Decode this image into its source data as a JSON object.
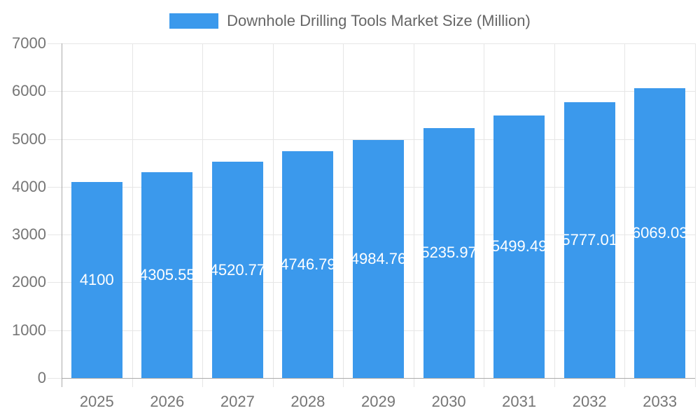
{
  "chart_data": {
    "type": "bar",
    "title": "Downhole Drilling Tools Market Size (Million)",
    "series_name": "Downhole Drilling Tools Market Size (Million)",
    "categories": [
      "2025",
      "2026",
      "2027",
      "2028",
      "2029",
      "2030",
      "2031",
      "2032",
      "2033"
    ],
    "values": [
      4100,
      4305.55,
      4520.77,
      4746.79,
      4984.76,
      5235.97,
      5499.49,
      5777.01,
      6069.03
    ],
    "bar_labels": [
      "4100",
      "4305.55",
      "4520.77",
      "4746.79",
      "4984.76",
      "5235.97",
      "5499.49",
      "5777.01",
      "6069.03"
    ],
    "xlabel": "",
    "ylabel": "",
    "ylim": [
      0,
      7000
    ],
    "ytick_step": 1000,
    "ytick_labels": [
      "0",
      "1000",
      "2000",
      "3000",
      "4000",
      "5000",
      "6000",
      "7000"
    ],
    "grid": true,
    "legend_position": "top",
    "colors": {
      "bar": "#3B99EC",
      "bar_label": "#FFFFFF",
      "grid_line": "#E6E6E6",
      "axis_line": "#ABABAB",
      "tick_label": "#757575",
      "legend_text": "#666666",
      "background": "#FFFFFF"
    }
  }
}
